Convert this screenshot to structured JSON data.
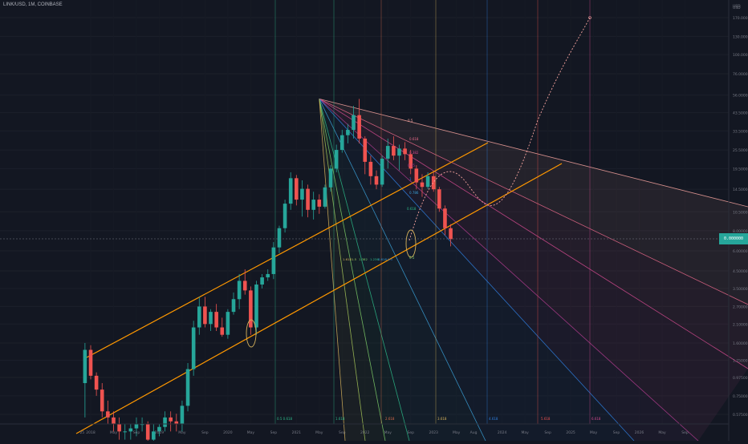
{
  "header": {
    "symbol": "LINK/USD, 1M, COINBASE",
    "currency": "USD"
  },
  "colors": {
    "background": "#131722",
    "up": "#26a69a",
    "down": "#ef5350",
    "channel": "#ff9800",
    "fan": [
      "#f7a49f",
      "#e8698a",
      "#d24a8f",
      "#b03c8e",
      "#2f7fe0",
      "#3aa0d8",
      "#2dbb8a",
      "#7fcf6a",
      "#a8c95a",
      "#d7b35c"
    ]
  },
  "chart_data": {
    "type": "candlestick",
    "y_scale": "log",
    "y_axis_ticks": [
      "USD",
      "170.00000",
      "130.00000",
      "100.00000",
      "76.00000",
      "56.00000",
      "43.50000",
      "33.50000",
      "25.50000",
      "19.50000",
      "14.50000",
      "10.50000",
      "8.00000",
      "6.00000",
      "4.50000",
      "3.50000",
      "2.70000",
      "2.10000",
      "1.60000",
      "1.25000",
      "0.97500",
      "0.75000",
      "0.57500"
    ],
    "x_axis_ticks": [
      "25",
      "2018",
      "May",
      "Sep",
      "2019",
      "May",
      "Sep",
      "2020",
      "May",
      "Sep",
      "2021",
      "May",
      "Sep",
      "2022",
      "May",
      "Sep",
      "2023",
      "May",
      "Aug",
      "2024",
      "May",
      "Sep",
      "2025",
      "May",
      "Sep",
      "2026",
      "May",
      "Sep"
    ],
    "current_price": "0.000000",
    "fib_time_labels": [
      "0.5 0.618",
      "1.618",
      "2.618",
      "3.618",
      "4.618",
      "5.618",
      "6.618"
    ],
    "fan_labels": [
      "0.5",
      "0.618",
      "0.382",
      "0.25",
      "1",
      "0.786",
      "0.618",
      "0.5"
    ],
    "small_labels": [
      "1.618",
      "1.5",
      "1.382",
      "1.236",
      "0.618",
      "0.5"
    ],
    "candles": [
      {
        "t": "2017-12",
        "o": 0.9,
        "h": 1.6,
        "l": 0.55,
        "c": 1.45
      },
      {
        "t": "2018-01",
        "o": 1.45,
        "h": 1.55,
        "l": 0.95,
        "c": 1.0
      },
      {
        "t": "2018-02",
        "o": 1.0,
        "h": 1.05,
        "l": 0.75,
        "c": 0.82
      },
      {
        "t": "2018-03",
        "o": 0.82,
        "h": 0.9,
        "l": 0.55,
        "c": 0.6
      },
      {
        "t": "2018-04",
        "o": 0.6,
        "h": 0.7,
        "l": 0.5,
        "c": 0.55
      },
      {
        "t": "2018-05",
        "o": 0.55,
        "h": 0.6,
        "l": 0.45,
        "c": 0.5
      },
      {
        "t": "2018-06",
        "o": 0.5,
        "h": 0.55,
        "l": 0.4,
        "c": 0.45
      },
      {
        "t": "2018-07",
        "o": 0.45,
        "h": 0.5,
        "l": 0.4,
        "c": 0.45
      },
      {
        "t": "2018-08",
        "o": 0.45,
        "h": 0.5,
        "l": 0.4,
        "c": 0.47
      },
      {
        "t": "2018-09",
        "o": 0.47,
        "h": 0.55,
        "l": 0.42,
        "c": 0.5
      },
      {
        "t": "2018-10",
        "o": 0.5,
        "h": 0.55,
        "l": 0.45,
        "c": 0.5
      },
      {
        "t": "2018-11",
        "o": 0.5,
        "h": 0.52,
        "l": 0.38,
        "c": 0.4
      },
      {
        "t": "2018-12",
        "o": 0.4,
        "h": 0.5,
        "l": 0.35,
        "c": 0.45
      },
      {
        "t": "2019-01",
        "o": 0.45,
        "h": 0.5,
        "l": 0.42,
        "c": 0.48
      },
      {
        "t": "2019-02",
        "o": 0.48,
        "h": 0.6,
        "l": 0.45,
        "c": 0.55
      },
      {
        "t": "2019-03",
        "o": 0.55,
        "h": 0.6,
        "l": 0.45,
        "c": 0.52
      },
      {
        "t": "2019-04",
        "o": 0.52,
        "h": 0.58,
        "l": 0.45,
        "c": 0.5
      },
      {
        "t": "2019-05",
        "o": 0.5,
        "h": 0.7,
        "l": 0.45,
        "c": 0.65
      },
      {
        "t": "2019-06",
        "o": 0.65,
        "h": 1.2,
        "l": 0.6,
        "c": 1.1
      },
      {
        "t": "2019-07",
        "o": 1.1,
        "h": 2.2,
        "l": 1.0,
        "c": 2.0
      },
      {
        "t": "2019-08",
        "o": 2.0,
        "h": 3.1,
        "l": 1.8,
        "c": 2.7
      },
      {
        "t": "2019-09",
        "o": 2.7,
        "h": 3.1,
        "l": 2.0,
        "c": 2.1
      },
      {
        "t": "2019-10",
        "o": 2.1,
        "h": 2.6,
        "l": 1.9,
        "c": 2.5
      },
      {
        "t": "2019-11",
        "o": 2.5,
        "h": 2.8,
        "l": 1.9,
        "c": 2.0
      },
      {
        "t": "2019-12",
        "o": 2.0,
        "h": 2.3,
        "l": 1.75,
        "c": 1.8
      },
      {
        "t": "2020-01",
        "o": 1.8,
        "h": 2.6,
        "l": 1.7,
        "c": 2.5
      },
      {
        "t": "2020-02",
        "o": 2.5,
        "h": 3.3,
        "l": 2.4,
        "c": 3.0
      },
      {
        "t": "2020-03",
        "o": 3.0,
        "h": 4.3,
        "l": 2.6,
        "c": 3.9
      },
      {
        "t": "2020-04",
        "o": 3.9,
        "h": 4.6,
        "l": 3.2,
        "c": 3.4
      },
      {
        "t": "2020-05",
        "o": 3.4,
        "h": 3.6,
        "l": 1.8,
        "c": 2.0
      },
      {
        "t": "2020-06",
        "o": 2.0,
        "h": 3.9,
        "l": 1.8,
        "c": 3.7
      },
      {
        "t": "2020-07",
        "o": 3.7,
        "h": 4.3,
        "l": 3.5,
        "c": 4.1
      },
      {
        "t": "2020-08",
        "o": 4.1,
        "h": 4.6,
        "l": 3.9,
        "c": 4.3
      },
      {
        "t": "2020-09",
        "o": 4.3,
        "h": 6.8,
        "l": 4.0,
        "c": 6.3
      },
      {
        "t": "2020-10",
        "o": 6.3,
        "h": 8.6,
        "l": 5.8,
        "c": 8.3
      },
      {
        "t": "2020-11",
        "o": 8.3,
        "h": 12.5,
        "l": 7.8,
        "c": 11.8
      },
      {
        "t": "2020-12",
        "o": 11.8,
        "h": 18.5,
        "l": 10.8,
        "c": 17.0
      },
      {
        "t": "2021-01",
        "o": 17.0,
        "h": 17.8,
        "l": 11.5,
        "c": 12.5
      },
      {
        "t": "2021-02",
        "o": 12.5,
        "h": 16.5,
        "l": 9.8,
        "c": 14.6
      },
      {
        "t": "2021-03",
        "o": 14.6,
        "h": 15.5,
        "l": 9.7,
        "c": 10.8
      },
      {
        "t": "2021-04",
        "o": 10.8,
        "h": 14.0,
        "l": 9.4,
        "c": 12.5
      },
      {
        "t": "2021-05",
        "o": 12.5,
        "h": 13.5,
        "l": 10.2,
        "c": 11.3
      },
      {
        "t": "2021-06",
        "o": 11.3,
        "h": 15.5,
        "l": 11.0,
        "c": 14.9
      },
      {
        "t": "2021-07",
        "o": 14.9,
        "h": 20.5,
        "l": 14.0,
        "c": 19.5
      },
      {
        "t": "2021-08",
        "o": 19.5,
        "h": 27.5,
        "l": 18.5,
        "c": 25.5
      },
      {
        "t": "2021-09",
        "o": 25.5,
        "h": 34.0,
        "l": 24.5,
        "c": 31.5
      },
      {
        "t": "2021-10",
        "o": 31.5,
        "h": 37.0,
        "l": 28.0,
        "c": 34.0
      },
      {
        "t": "2021-11",
        "o": 34.0,
        "h": 48.0,
        "l": 30.0,
        "c": 42.0
      },
      {
        "t": "2021-12",
        "o": 42.0,
        "h": 53.0,
        "l": 28.0,
        "c": 30.0
      },
      {
        "t": "2022-01",
        "o": 30.0,
        "h": 31.0,
        "l": 18.0,
        "c": 21.5
      },
      {
        "t": "2022-02",
        "o": 21.5,
        "h": 23.5,
        "l": 15.5,
        "c": 17.5
      },
      {
        "t": "2022-03",
        "o": 17.5,
        "h": 19.0,
        "l": 14.5,
        "c": 15.5
      },
      {
        "t": "2022-04",
        "o": 15.5,
        "h": 23.5,
        "l": 15.0,
        "c": 22.5
      },
      {
        "t": "2022-05",
        "o": 22.5,
        "h": 30.0,
        "l": 19.5,
        "c": 27.0
      },
      {
        "t": "2022-06",
        "o": 27.0,
        "h": 31.0,
        "l": 22.0,
        "c": 23.5
      },
      {
        "t": "2022-07",
        "o": 23.5,
        "h": 27.5,
        "l": 19.0,
        "c": 26.0
      },
      {
        "t": "2022-08",
        "o": 26.0,
        "h": 28.5,
        "l": 22.0,
        "c": 24.0
      },
      {
        "t": "2022-09",
        "o": 24.0,
        "h": 25.5,
        "l": 18.0,
        "c": 19.5
      },
      {
        "t": "2022-10",
        "o": 19.5,
        "h": 20.5,
        "l": 14.5,
        "c": 16.0
      },
      {
        "t": "2022-11",
        "o": 16.0,
        "h": 18.0,
        "l": 13.0,
        "c": 15.0
      },
      {
        "t": "2022-12",
        "o": 15.0,
        "h": 18.5,
        "l": 14.5,
        "c": 17.5
      },
      {
        "t": "2023-01",
        "o": 17.5,
        "h": 18.5,
        "l": 14.0,
        "c": 14.5
      },
      {
        "t": "2023-02",
        "o": 14.5,
        "h": 15.0,
        "l": 10.5,
        "c": 11.0
      },
      {
        "t": "2023-03",
        "o": 11.0,
        "h": 11.5,
        "l": 7.5,
        "c": 8.3
      },
      {
        "t": "2023-04",
        "o": 8.3,
        "h": 8.8,
        "l": 6.4,
        "c": 7.1
      }
    ]
  }
}
